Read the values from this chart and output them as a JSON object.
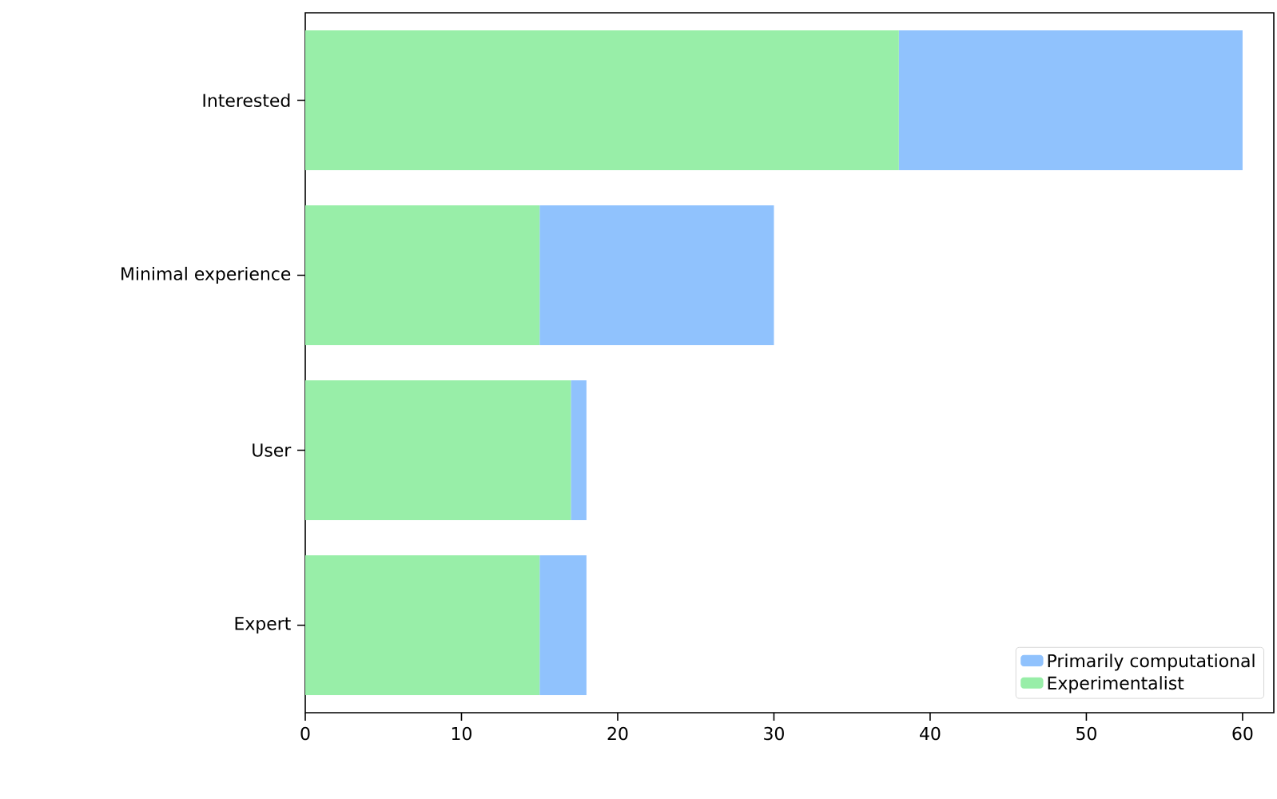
{
  "chart_data": {
    "type": "bar",
    "orientation": "horizontal",
    "stacked": true,
    "categories": [
      "Interested",
      "Minimal experience",
      "User",
      "Expert"
    ],
    "series": [
      {
        "name": "Experimentalist",
        "color": "#98eea8",
        "values": [
          38,
          15,
          17,
          15
        ]
      },
      {
        "name": "Primarily computational",
        "color": "#90c2fd",
        "values": [
          22,
          15,
          1,
          3
        ]
      }
    ],
    "xlim": [
      0,
      62
    ],
    "xticks": [
      0,
      10,
      20,
      30,
      40,
      50,
      60
    ],
    "grid": false,
    "legend": "bottom right"
  }
}
